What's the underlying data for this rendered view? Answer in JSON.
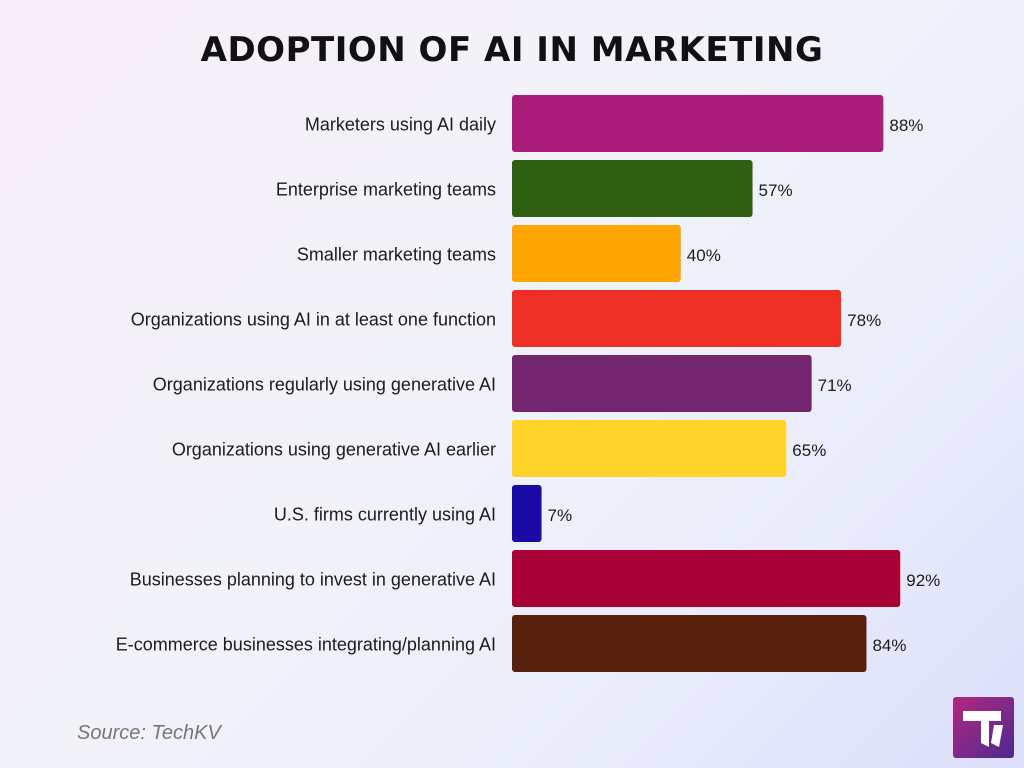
{
  "title": "ADOPTION OF AI IN MARKETING",
  "source": "Source: TechKV",
  "chart_data": {
    "type": "bar",
    "orientation": "horizontal",
    "title": "ADOPTION OF AI IN MARKETING",
    "xlim": [
      0,
      100
    ],
    "grid": false,
    "legend": "none",
    "categories": [
      "Marketers using AI daily",
      "Enterprise marketing teams",
      "Smaller marketing teams",
      "Organizations using AI in at least one function",
      "Organizations regularly using generative AI",
      "Organizations using generative AI earlier",
      "U.S. firms currently using AI",
      "Businesses planning to invest in generative AI",
      "E-commerce businesses integrating/planning AI"
    ],
    "values": [
      88,
      57,
      40,
      78,
      71,
      65,
      7,
      92,
      84
    ],
    "value_labels": [
      "88%",
      "57%",
      "40%",
      "78%",
      "71%",
      "65%",
      "7%",
      "92%",
      "84%"
    ],
    "colors": [
      "#ab1d7a",
      "#2f5f10",
      "#ffa500",
      "#ed3023",
      "#732570",
      "#ffd42a",
      "#1a0aa6",
      "#a90035",
      "#57210d"
    ]
  }
}
